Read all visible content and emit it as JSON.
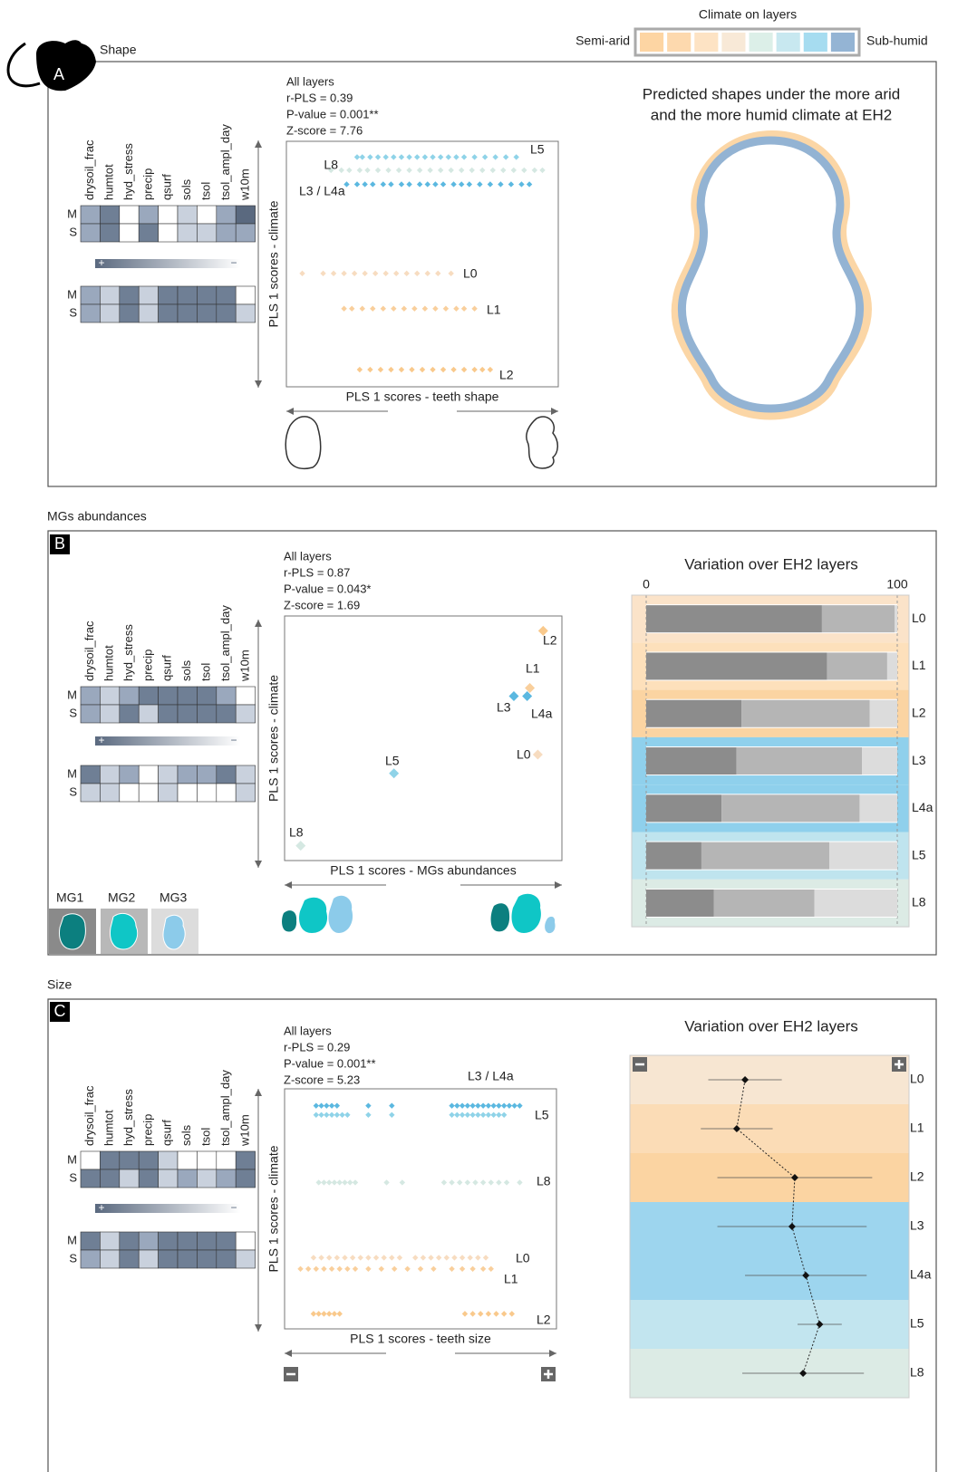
{
  "legend": {
    "title": "Climate on layers",
    "left": "Semi-arid",
    "right": "Sub-humid",
    "colors": [
      "#fdd5a3",
      "#fdd9ae",
      "#fde3c4",
      "#f8e9d7",
      "#dcefe8",
      "#c8e8f0",
      "#a6dcf0",
      "#94b4d4"
    ]
  },
  "variables": [
    "drysoil_frac",
    "humtot",
    "hyd_stress",
    "precip",
    "qsurf",
    "sols",
    "tsol",
    "tsol_ampl_day",
    "w10m"
  ],
  "row_labels": [
    "M",
    "S"
  ],
  "scale_labels": [
    "+",
    "−"
  ],
  "heatmap_palette": [
    "#ffffff",
    "#c9d1dd",
    "#9aa8bd",
    "#6f7f95",
    "#5a697f"
  ],
  "panels": [
    {
      "letter": "A",
      "title": "Shape",
      "stats": [
        "All layers",
        "r-PLS = 0.39",
        "P-value =  0.001**",
        "Z-score = 7.76"
      ],
      "x_label": "PLS 1 scores - teeth shape",
      "y_label": "PLS 1 scores - climate",
      "heatmaps": [
        [
          [
            2,
            3,
            0,
            2,
            0,
            1,
            0,
            2,
            4
          ],
          [
            2,
            3,
            0,
            3,
            0,
            1,
            1,
            2,
            2
          ]
        ],
        [
          [
            2,
            1,
            3,
            1,
            3,
            3,
            3,
            3,
            0
          ],
          [
            2,
            1,
            3,
            1,
            3,
            3,
            3,
            3,
            1
          ]
        ]
      ],
      "scatter": {
        "xlim": [
          0,
          100
        ],
        "ylim": [
          0,
          100
        ],
        "rows": [
          {
            "label": "L5",
            "color": "#8fd3e8",
            "y": 95.6,
            "x": [
              25,
              27,
              30,
              33,
              36,
              39,
              42,
              45,
              48,
              51,
              54,
              57,
              60,
              63,
              66,
              70,
              74,
              78,
              82,
              86
            ]
          },
          {
            "label": "L8",
            "color": "#d5e8e2",
            "y": 90,
            "x": [
              15,
              19,
              22,
              26,
              29,
              33,
              37,
              41,
              45,
              49,
              53,
              57,
              61,
              65,
              69,
              73,
              77,
              81,
              85,
              89,
              93,
              96
            ]
          },
          {
            "label": "L3 / L4a",
            "color": "#5bb8e0",
            "y": 84,
            "x": [
              21,
              25,
              28,
              31,
              35,
              38,
              42,
              45,
              49,
              52,
              55,
              58,
              62,
              65,
              68,
              72,
              76,
              80,
              84,
              88,
              91
            ]
          },
          {
            "label": "L0",
            "color": "#f7dcc0",
            "y": 46,
            "x": [
              4,
              12,
              16,
              20,
              24,
              28,
              32,
              36,
              40,
              44,
              48,
              52,
              56,
              61
            ]
          },
          {
            "label": "L1",
            "color": "#f9cf9c",
            "y": 31,
            "x": [
              20,
              23,
              27,
              31,
              35,
              39,
              43,
              47,
              51,
              55,
              59,
              63,
              66,
              70
            ]
          },
          {
            "label": "L2",
            "color": "#f9c98c",
            "y": 5,
            "x": [
              26,
              30,
              34,
              38,
              42,
              46,
              50,
              54,
              58,
              62,
              66,
              70,
              73,
              76
            ]
          }
        ]
      },
      "right": {
        "title_lines": [
          "Predicted shapes under the more arid",
          "and the more humid climate at EH2"
        ]
      }
    },
    {
      "letter": "B",
      "title": "MGs abundances",
      "stats": [
        "All layers",
        "r-PLS = 0.87",
        "P-value = 0.043*",
        "Z-score = 1.69"
      ],
      "x_label": "PLS 1 scores - MGs abundances",
      "y_label": "PLS 1 scores - climate",
      "heatmaps": [
        [
          [
            2,
            1,
            2,
            3,
            3,
            3,
            3,
            2,
            0
          ],
          [
            2,
            1,
            3,
            1,
            3,
            3,
            3,
            3,
            1
          ]
        ],
        [
          [
            3,
            1,
            2,
            0,
            1,
            2,
            2,
            3,
            1
          ],
          [
            1,
            1,
            0,
            0,
            1,
            0,
            0,
            0,
            1
          ]
        ]
      ],
      "scatter": {
        "xlim": [
          0,
          100
        ],
        "ylim": [
          0,
          100
        ],
        "rows": [
          {
            "label": "L2",
            "color": "#f9c98c",
            "y": 96,
            "x": [
              95
            ]
          },
          {
            "label": "L1",
            "color": "#f9cf9c",
            "y": 71.5,
            "x": [
              90
            ]
          },
          {
            "label": "L3",
            "color": "#5bb8e0",
            "y": 68,
            "x": [
              84
            ]
          },
          {
            "label": "L4a",
            "color": "#5bb8e0",
            "y": 68,
            "x": [
              89
            ]
          },
          {
            "label": "L0",
            "color": "#f7dcc0",
            "y": 43,
            "x": [
              93
            ]
          },
          {
            "label": "L5",
            "color": "#8fd3e8",
            "y": 35,
            "x": [
              39
            ]
          },
          {
            "label": "L8",
            "color": "#d5e8e2",
            "y": 4,
            "x": [
              4
            ]
          }
        ]
      },
      "right": {
        "title": "Variation over EH2 layers",
        "xlim": [
          0,
          100
        ],
        "xticks": [
          0,
          100
        ],
        "layers": [
          "L0",
          "L1",
          "L2",
          "L3",
          "L4a",
          "L5",
          "L8"
        ],
        "band_colors": [
          "#fbe3c9",
          "#fde0bb",
          "#fbd4a2",
          "#8fd0ec",
          "#8fd0ec",
          "#bfe4ee",
          "#dcebe5"
        ],
        "series": [
          {
            "name": "MG1",
            "color": "#8c8c8c",
            "values": [
              70,
              72,
              38,
              36,
              30,
              22,
              27
            ]
          },
          {
            "name": "MG2",
            "color": "#b5b5b5",
            "values": [
              29,
              24,
              51,
              50,
              55,
              51,
              40
            ]
          },
          {
            "name": "MG3",
            "color": "#dcdcdc",
            "values": [
              1,
              4,
              11,
              14,
              15,
              27,
              33
            ]
          }
        ]
      }
    },
    {
      "letter": "C",
      "title": "Size",
      "stats": [
        "All layers",
        "r-PLS = 0.29",
        "P-value = 0.001**",
        "Z-score = 5.23"
      ],
      "x_label": "PLS 1 scores - teeth size",
      "y_label": "PLS 1 scores - climate",
      "heatmaps": [
        [
          [
            0,
            3,
            3,
            3,
            1,
            0,
            0,
            0,
            3
          ],
          [
            3,
            3,
            1,
            3,
            1,
            2,
            1,
            2,
            3
          ]
        ],
        [
          [
            3,
            1,
            3,
            2,
            3,
            3,
            3,
            3,
            0
          ],
          [
            2,
            1,
            3,
            1,
            3,
            3,
            3,
            3,
            1
          ]
        ]
      ],
      "scatter": {
        "xlim": [
          0,
          100
        ],
        "ylim": [
          0,
          100
        ],
        "rows": [
          {
            "label": "L3 / L4a",
            "color": "#5bb8e0",
            "y": 95,
            "x": [
              10,
              12,
              14,
              16,
              18,
              30,
              39,
              62,
              64,
              66,
              68,
              70,
              72,
              74,
              76,
              78,
              80,
              82,
              84,
              86,
              88
            ]
          },
          {
            "label": "L5",
            "color": "#8fd3e8",
            "y": 91,
            "x": [
              10,
              12,
              14,
              16,
              18,
              20,
              22,
              30,
              39,
              62,
              64,
              66,
              68,
              70,
              72,
              74,
              76,
              78,
              80,
              82
            ]
          },
          {
            "label": "L8",
            "color": "#d5e8e2",
            "y": 61.5,
            "x": [
              11,
              13,
              15,
              17,
              19,
              21,
              23,
              25,
              37,
              43,
              59,
              62,
              65,
              68,
              71,
              74,
              77,
              80,
              83,
              88
            ]
          },
          {
            "label": "L0",
            "color": "#f7dcc0",
            "y": 28.7,
            "x": [
              9,
              12,
              15,
              18,
              21,
              24,
              27,
              30,
              33,
              36,
              39,
              42,
              48,
              51,
              54,
              57,
              60,
              63,
              66,
              69,
              72,
              75
            ]
          },
          {
            "label": "L1",
            "color": "#f9cf9c",
            "y": 23.8,
            "x": [
              4,
              7,
              10,
              13,
              16,
              19,
              22,
              25,
              30,
              35,
              40,
              45,
              50,
              55,
              62,
              66,
              70,
              74,
              77
            ]
          },
          {
            "label": "L2",
            "color": "#f9c98c",
            "y": 4.2,
            "x": [
              9,
              11,
              13,
              15,
              17,
              19,
              67,
              70,
              73,
              76,
              79,
              82,
              85
            ]
          }
        ]
      },
      "right": {
        "title": "Variation over EH2 layers",
        "xlim": [
          0,
          100
        ],
        "layers": [
          "L0",
          "L1",
          "L2",
          "L3",
          "L4a",
          "L5",
          "L8"
        ],
        "band_colors": [
          "#f7e6d2",
          "#fbdcb6",
          "#fbd4a2",
          "#9dd5ee",
          "#9dd5ee",
          "#c2e5ef",
          "#dcebe5"
        ],
        "means": [
          41,
          38,
          59,
          58,
          63,
          68,
          62
        ],
        "errors": [
          13.3,
          13,
          28,
          27,
          22,
          8,
          22
        ]
      }
    }
  ]
}
